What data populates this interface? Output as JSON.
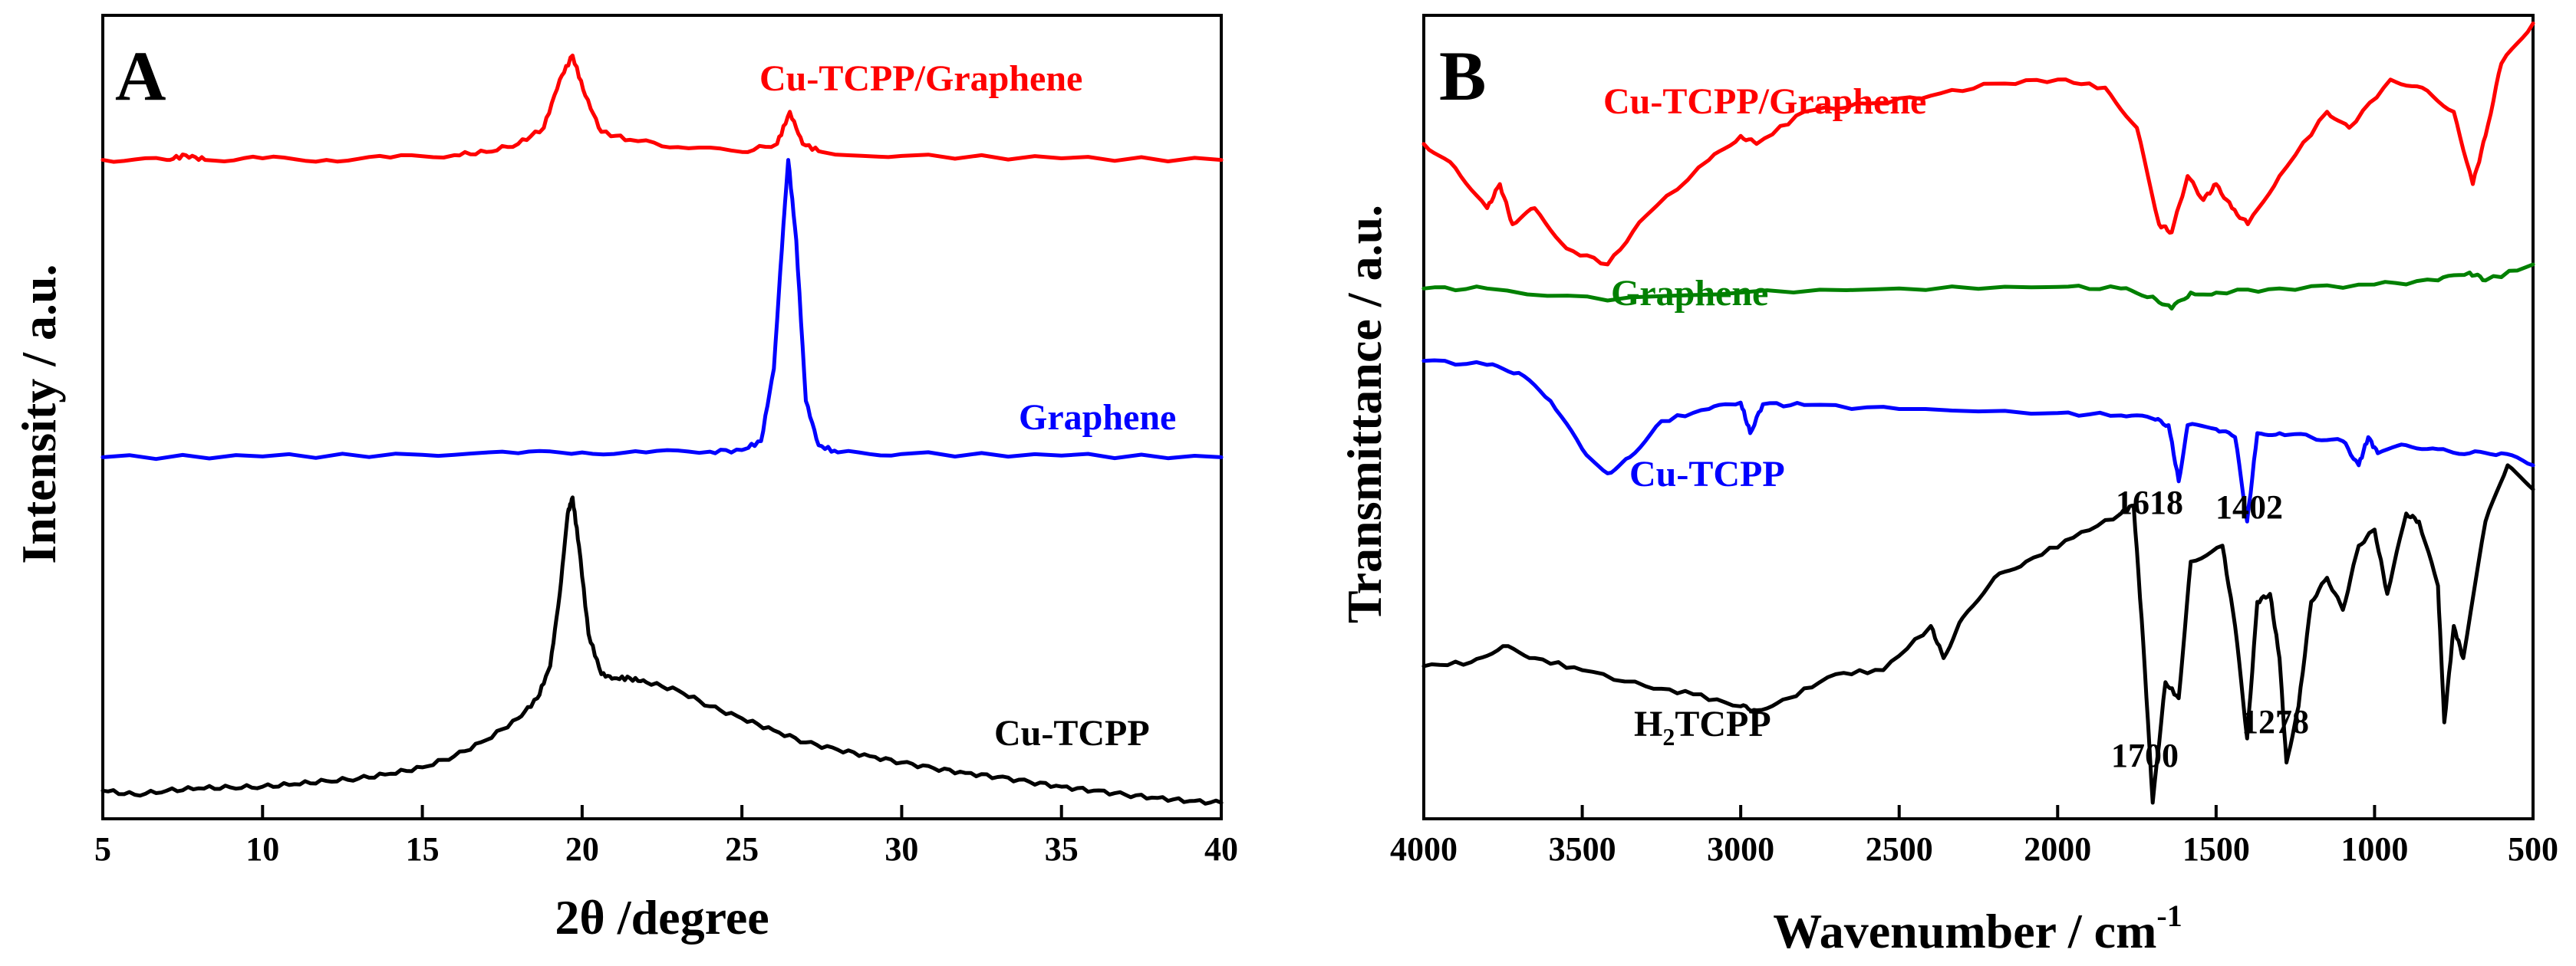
{
  "chart_data": [
    {
      "panel": "A",
      "type": "line",
      "xlabel": "2θ /degree",
      "ylabel": "Intensity / a.u.",
      "xlim": [
        5,
        40
      ],
      "xticks": [
        5,
        10,
        15,
        20,
        25,
        30,
        35,
        40
      ],
      "y_values_note": "relative intensity, arbitrary units (stacked traces)",
      "ylim": [
        0,
        100
      ],
      "series": [
        {
          "name": "Cu-TCPP/Graphene",
          "color": "#ff0000",
          "x": [
            5,
            7,
            7.6,
            8.2,
            10,
            12,
            14,
            16,
            17,
            18,
            18.8,
            19.3,
            19.7,
            20.1,
            20.6,
            21.5,
            23,
            25,
            26.1,
            26.5,
            26.9,
            27.5,
            30,
            35,
            40
          ],
          "values": [
            82,
            82,
            82.6,
            82,
            82.2,
            82,
            82.3,
            82.6,
            83,
            84,
            86,
            92,
            95,
            90,
            85.5,
            84.5,
            83.6,
            83,
            84,
            88,
            84,
            83,
            82.5,
            82.2,
            82
          ]
        },
        {
          "name": "Graphene",
          "color": "#0000ff",
          "x": [
            5,
            10,
            15,
            18,
            20,
            22,
            24,
            25,
            25.6,
            26,
            26.3,
            26.45,
            26.7,
            27,
            27.4,
            28,
            30,
            35,
            40
          ],
          "values": [
            45,
            45.1,
            45.3,
            45.5,
            45.6,
            45.6,
            45.7,
            45.9,
            47,
            56,
            74,
            82,
            72,
            52,
            46.5,
            45.6,
            45.4,
            45.2,
            45
          ],
          "annotations": []
        },
        {
          "name": "Cu-TCPP",
          "color": "#000000",
          "x": [
            5,
            6,
            7,
            8,
            9,
            10,
            11,
            12,
            13,
            14,
            15,
            16,
            17,
            18,
            18.6,
            19,
            19.3,
            19.55,
            19.7,
            19.9,
            20.2,
            20.6,
            21,
            21.5,
            22,
            23,
            24,
            25,
            26,
            27,
            28,
            29,
            30,
            31,
            32,
            33,
            34,
            35,
            36,
            37,
            38,
            39,
            40
          ],
          "values": [
            3.5,
            3,
            3.5,
            3.8,
            3.9,
            4,
            4.3,
            4.7,
            5,
            5.6,
            6.4,
            7.8,
            9.8,
            12.5,
            15,
            19,
            28,
            38,
            40,
            34,
            23,
            18,
            17.5,
            17.5,
            17,
            16,
            14,
            12.5,
            11,
            9.5,
            8.6,
            7.8,
            7,
            6.3,
            5.7,
            5.2,
            4.6,
            4,
            3.5,
            3,
            2.6,
            2.2,
            2
          ]
        }
      ]
    },
    {
      "panel": "B",
      "type": "line",
      "xlabel_main": "Wavenumber / cm",
      "xlabel_sup": "-1",
      "ylabel": "Transmittance / a.u.",
      "xlim": [
        4000,
        500
      ],
      "xticks": [
        4000,
        3500,
        3000,
        2500,
        2000,
        1500,
        1000,
        500
      ],
      "y_values_note": "relative transmittance, arbitrary units (stacked traces)",
      "ylim": [
        0,
        100
      ],
      "series": [
        {
          "name": "Cu-TCPP/Graphene",
          "color": "#ff0000",
          "x": [
            4000,
            3900,
            3800,
            3760,
            3720,
            3650,
            3550,
            3420,
            3300,
            3100,
            3000,
            2950,
            2800,
            2600,
            2400,
            2200,
            2000,
            1850,
            1750,
            1680,
            1640,
            1590,
            1540,
            1500,
            1450,
            1400,
            1300,
            1150,
            1080,
            950,
            850,
            750,
            690,
            650,
            600,
            500
          ],
          "values": [
            84,
            81,
            76,
            79,
            74,
            76,
            71,
            69,
            75,
            82,
            85,
            84,
            88,
            89,
            90,
            91.5,
            92,
            91,
            86,
            74,
            73,
            80,
            77,
            79,
            76,
            74,
            80,
            88,
            86,
            92,
            91,
            88,
            79,
            85,
            94,
            99
          ]
        },
        {
          "name": "Graphene",
          "color": "#008000",
          "x": [
            4000,
            3800,
            3420,
            3000,
            2500,
            2000,
            1800,
            1700,
            1640,
            1580,
            1500,
            1300,
            1000,
            800,
            700,
            650,
            500
          ],
          "values": [
            66,
            66,
            64.5,
            65.5,
            66,
            66.2,
            66,
            65,
            63.5,
            65.5,
            65.5,
            66,
            66.5,
            67,
            68,
            67,
            69
          ]
        },
        {
          "name": "Cu-TCPP",
          "color": "#0000ff",
          "x": [
            4000,
            3800,
            3700,
            3600,
            3500,
            3420,
            3350,
            3250,
            3100,
            3000,
            2970,
            2930,
            2800,
            2500,
            2000,
            1800,
            1700,
            1650,
            1618,
            1590,
            1500,
            1440,
            1402,
            1370,
            1300,
            1200,
            1100,
            1050,
            1020,
            990,
            900,
            800,
            700,
            600,
            500
          ],
          "values": [
            57,
            56.5,
            55.5,
            52,
            46,
            43,
            45,
            49.5,
            51,
            51.8,
            48,
            51.6,
            51.5,
            51,
            50.5,
            50.2,
            49.8,
            49,
            42,
            49,
            48.5,
            47.5,
            37,
            48,
            48,
            47.5,
            47,
            44,
            47.5,
            45.5,
            46.5,
            46,
            45.5,
            45.5,
            44
          ]
        },
        {
          "name": "H2TCPP",
          "color": "#000000",
          "x": [
            4000,
            3850,
            3750,
            3650,
            3500,
            3300,
            3150,
            3000,
            2950,
            2850,
            2700,
            2550,
            2400,
            2360,
            2300,
            2200,
            2100,
            1950,
            1800,
            1760,
            1730,
            1700,
            1660,
            1618,
            1580,
            1480,
            1440,
            1402,
            1370,
            1330,
            1300,
            1278,
            1240,
            1200,
            1150,
            1100,
            1050,
            1000,
            960,
            900,
            860,
            800,
            780,
            750,
            720,
            650,
            580,
            500
          ],
          "values": [
            19,
            19.5,
            21.5,
            20,
            18.5,
            16.5,
            15.5,
            14,
            13.5,
            15,
            18,
            18.5,
            24,
            20,
            25,
            30,
            32,
            35,
            38,
            39,
            22,
            2,
            17,
            15,
            32,
            34,
            24,
            10,
            27,
            28,
            20,
            7,
            14,
            27,
            30,
            26,
            34,
            36,
            28,
            38,
            37,
            29,
            12,
            24,
            20,
            37,
            44,
            41
          ]
        }
      ],
      "annotations": [
        {
          "text": "1618",
          "x": 1618
        },
        {
          "text": "1402",
          "x": 1402
        },
        {
          "text": "1700",
          "x": 1700
        },
        {
          "text": "1278",
          "x": 1278
        }
      ]
    }
  ],
  "labels": {
    "panel_a_letter": "A",
    "panel_b_letter": "B",
    "a_cutcpp_graphene": "Cu-TCPP/Graphene",
    "a_graphene": "Graphene",
    "a_cutcpp": "Cu-TCPP",
    "b_cutcpp_graphene": "Cu-TCPP/Graphene",
    "b_graphene": "Graphene",
    "b_cutcpp": "Cu-TCPP",
    "b_h2tcpp_main": "H",
    "b_h2tcpp_sub": "2",
    "b_h2tcpp_rest": "TCPP",
    "ann_1618": "1618",
    "ann_1402": "1402",
    "ann_1700": "1700",
    "ann_1278": "1278"
  }
}
